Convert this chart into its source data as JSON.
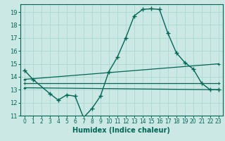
{
  "xlabel": "Humidex (Indice chaleur)",
  "bg_color": "#cce8e4",
  "grid_color": "#aad8d4",
  "line_color": "#006655",
  "xlim": [
    -0.5,
    23.5
  ],
  "ylim": [
    11,
    19.6
  ],
  "yticks": [
    11,
    12,
    13,
    14,
    15,
    16,
    17,
    18,
    19
  ],
  "xticks": [
    0,
    1,
    2,
    3,
    4,
    5,
    6,
    7,
    8,
    9,
    10,
    11,
    12,
    13,
    14,
    15,
    16,
    17,
    18,
    19,
    20,
    21,
    22,
    23
  ],
  "line1_x": [
    0,
    1,
    3,
    4,
    5,
    6,
    7,
    8,
    9,
    10,
    11,
    12,
    13,
    14,
    15,
    16,
    17,
    18,
    19,
    20,
    21,
    22,
    23
  ],
  "line1_y": [
    14.5,
    13.8,
    12.7,
    12.2,
    12.6,
    12.5,
    10.85,
    11.55,
    12.5,
    14.4,
    15.5,
    17.0,
    18.7,
    19.2,
    19.25,
    19.2,
    17.35,
    15.85,
    15.1,
    14.6,
    13.5,
    13.0,
    13.0
  ],
  "line2_x": [
    0,
    23
  ],
  "line2_y": [
    13.15,
    13.0
  ],
  "line3_x": [
    0,
    23
  ],
  "line3_y": [
    13.5,
    13.5
  ],
  "line4_x": [
    0,
    23
  ],
  "line4_y": [
    13.8,
    15.0
  ],
  "xlabel_fontsize": 7,
  "tick_fontsize": 5.5
}
